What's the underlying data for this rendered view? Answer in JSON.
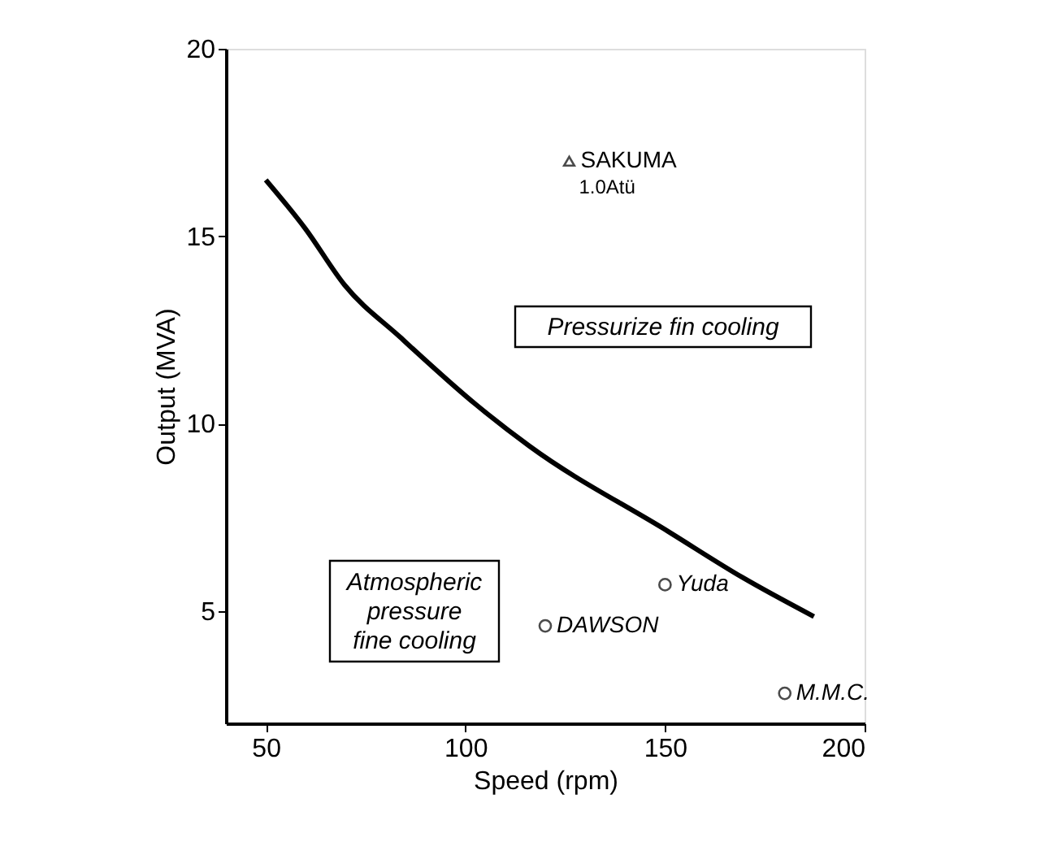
{
  "chart_data": {
    "type": "line",
    "xlabel": "Speed (rpm)",
    "ylabel": "Output (MVA)",
    "xlim": [
      40,
      200
    ],
    "xticks": [
      50,
      100,
      150,
      200
    ],
    "ylim": [
      2,
      20
    ],
    "yticks": [
      5,
      10,
      15,
      20
    ],
    "grid": false,
    "series": [
      {
        "color": "#000000",
        "marker": "none",
        "line_style": "solid",
        "x": [
          50,
          59.9,
          69.7,
          83.7,
          102.7,
          116,
          151.1,
          169.3,
          187.3
        ],
        "values": [
          16.5,
          15.2,
          13.7,
          12.3,
          10.5,
          9.4,
          7.1,
          5.9,
          4.85
        ]
      },
      {
        "type": "scatter",
        "color": "#000000",
        "marker": "circle",
        "x": [
          150,
          120,
          180
        ],
        "values": [
          5.7,
          4.6,
          2.8
        ],
        "value_labels": [
          "Yuda",
          "DAWSON",
          "M.M.C."
        ]
      },
      {
        "type": "scatter",
        "color": "#000000",
        "marker": "triangle",
        "x": [
          126
        ],
        "values": [
          17
        ],
        "value_labels": [
          "SAKUMA"
        ]
      }
    ],
    "annotations": [
      {
        "text": "1.0Atü",
        "x": 126,
        "y": 17
      },
      "Pressurize fin cooling",
      "Atmospheric\npressure\nfine cooling"
    ]
  }
}
